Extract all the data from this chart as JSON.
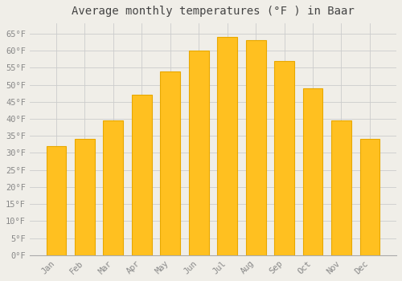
{
  "title": "Average monthly temperatures (°F ) in Baar",
  "months": [
    "Jan",
    "Feb",
    "Mar",
    "Apr",
    "May",
    "Jun",
    "Jul",
    "Aug",
    "Sep",
    "Oct",
    "Nov",
    "Dec"
  ],
  "values": [
    32,
    34,
    39.5,
    47,
    54,
    60,
    64,
    63,
    57,
    49,
    39.5,
    34
  ],
  "bar_color": "#FFC020",
  "bar_edge_color": "#E8A800",
  "background_color": "#F0EEE8",
  "grid_color": "#CCCCCC",
  "ylim": [
    0,
    68
  ],
  "yticks": [
    0,
    5,
    10,
    15,
    20,
    25,
    30,
    35,
    40,
    45,
    50,
    55,
    60,
    65
  ],
  "title_fontsize": 10,
  "tick_fontsize": 7.5,
  "title_color": "#444444",
  "tick_color": "#888888",
  "bar_width": 0.7
}
